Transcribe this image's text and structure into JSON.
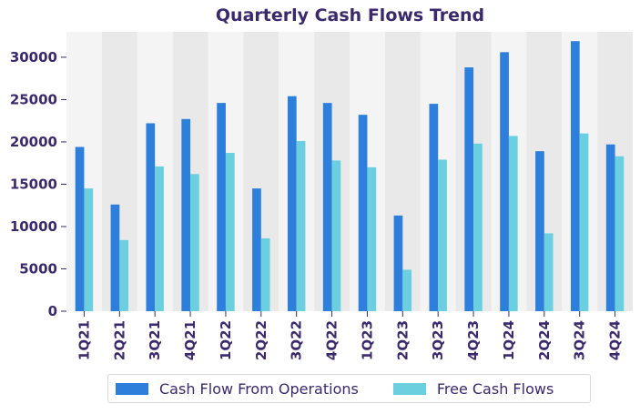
{
  "chart_data": {
    "type": "bar",
    "title": "Quarterly Cash Flows Trend",
    "xlabel": "",
    "ylabel": "",
    "categories": [
      "1Q21",
      "2Q21",
      "3Q21",
      "4Q21",
      "1Q22",
      "2Q22",
      "3Q22",
      "4Q22",
      "1Q23",
      "2Q23",
      "3Q23",
      "4Q23",
      "1Q24",
      "2Q24",
      "3Q24",
      "4Q24"
    ],
    "series": [
      {
        "name": "Cash Flow From Operations",
        "color": "#2e7fdc",
        "values": [
          19400,
          12600,
          22200,
          22700,
          24600,
          14500,
          25400,
          24600,
          23200,
          11300,
          24500,
          28800,
          30600,
          18900,
          31900,
          19700
        ]
      },
      {
        "name": "Free Cash Flows",
        "color": "#6ccfe0",
        "values": [
          14500,
          8400,
          17100,
          16200,
          18700,
          8600,
          20100,
          17800,
          17000,
          4900,
          17900,
          19800,
          20700,
          9200,
          21000,
          18300
        ]
      }
    ],
    "ylim": [
      0,
      33000
    ],
    "yticks": [
      0,
      5000,
      10000,
      15000,
      20000,
      25000,
      30000
    ],
    "grid": false,
    "legend_position": "bottom",
    "band_colors": [
      "#f4f4f4",
      "#e9e9e9"
    ]
  }
}
